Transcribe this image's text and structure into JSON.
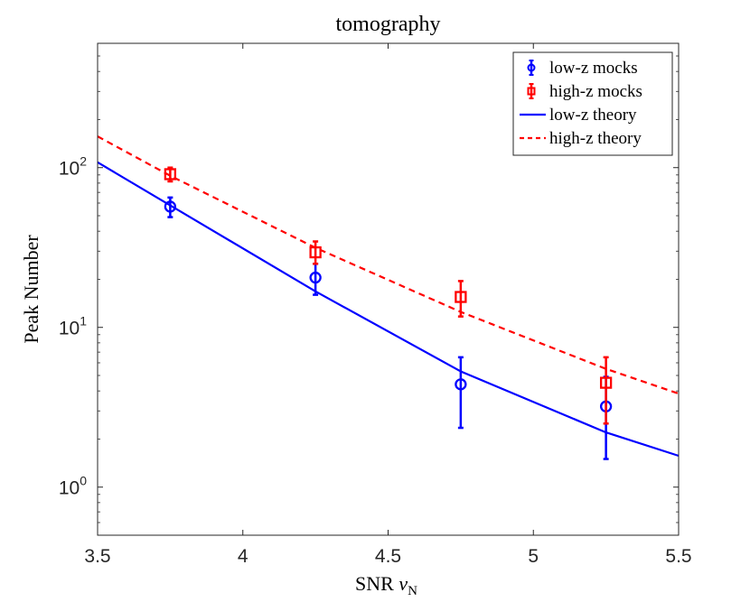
{
  "chart_data": {
    "type": "line",
    "title": "tomography",
    "xlabel_main": "SNR ",
    "xlabel_symbol": "ν",
    "xlabel_sub": "N",
    "ylabel": "Peak Number",
    "yscale": "log",
    "xlim": [
      3.5,
      5.5
    ],
    "ylim": [
      0.5,
      600
    ],
    "x_ticks": [
      3.5,
      4,
      4.5,
      5,
      5.5
    ],
    "x_tick_labels": [
      "3.5",
      "4",
      "4.5",
      "5",
      "5.5"
    ],
    "y_ticks": [
      1,
      10,
      100
    ],
    "y_tick_base": "10",
    "y_tick_exponents": [
      "0",
      "1",
      "2"
    ],
    "series": [
      {
        "name": "low-z mocks",
        "kind": "errorbar",
        "marker": "circle",
        "color": "#0000ff",
        "x": [
          3.75,
          4.25,
          4.75,
          5.25
        ],
        "y": [
          57,
          20.5,
          4.4,
          3.2
        ],
        "y_low": [
          49,
          16,
          2.35,
          1.5
        ],
        "y_high": [
          65,
          25,
          6.5,
          4.9
        ]
      },
      {
        "name": "high-z mocks",
        "kind": "errorbar",
        "marker": "square",
        "color": "#ff0000",
        "x": [
          3.75,
          4.25,
          4.75,
          5.25
        ],
        "y": [
          91,
          29.5,
          15.5,
          4.5
        ],
        "y_low": [
          82,
          25,
          11.7,
          2.5
        ],
        "y_high": [
          100,
          34.5,
          19.5,
          6.5
        ]
      },
      {
        "name": "low-z theory",
        "kind": "line",
        "style": "solid",
        "color": "#0000ff",
        "x": [
          3.5,
          3.75,
          4.25,
          4.75,
          5.25,
          5.5
        ],
        "y": [
          108,
          58,
          16.8,
          5.3,
          2.2,
          1.57
        ]
      },
      {
        "name": "high-z theory",
        "kind": "line",
        "style": "dashed",
        "color": "#ff0000",
        "x": [
          3.5,
          3.75,
          4.25,
          4.75,
          5.25,
          5.5
        ],
        "y": [
          157,
          89,
          31.5,
          12.5,
          5.5,
          3.85
        ]
      }
    ],
    "legend_position": "top-right"
  }
}
